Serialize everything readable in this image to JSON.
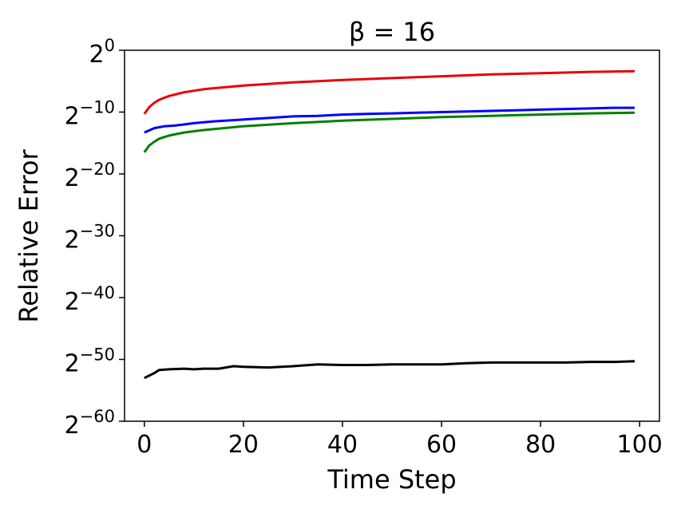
{
  "chart_data": {
    "type": "line",
    "title": "β = 16",
    "xlabel": "Time Step",
    "ylabel": "Relative Error",
    "xlim": [
      -4,
      104
    ],
    "ylim": [
      -60,
      0
    ],
    "y_scale": "log2",
    "x_ticks": [
      0,
      20,
      40,
      60,
      80,
      100
    ],
    "y_ticks": [
      {
        "value": 0,
        "base": "2",
        "exponent": "0"
      },
      {
        "value": -10,
        "base": "2",
        "exponent": "−10"
      },
      {
        "value": -20,
        "base": "2",
        "exponent": "−20"
      },
      {
        "value": -30,
        "base": "2",
        "exponent": "−30"
      },
      {
        "value": -40,
        "base": "2",
        "exponent": "−40"
      },
      {
        "value": -50,
        "base": "2",
        "exponent": "−50"
      },
      {
        "value": -60,
        "base": "2",
        "exponent": "−60"
      }
    ],
    "grid": false,
    "legend": "none",
    "series": [
      {
        "color": "#e8000b",
        "x": [
          0,
          1,
          2,
          3,
          5,
          8,
          12,
          20,
          30,
          40,
          50,
          60,
          70,
          80,
          90,
          99
        ],
        "y": [
          -10.3,
          -9.2,
          -8.5,
          -8.0,
          -7.4,
          -6.8,
          -6.3,
          -5.7,
          -5.2,
          -4.8,
          -4.5,
          -4.2,
          -3.9,
          -3.7,
          -3.5,
          -3.4
        ]
      },
      {
        "color": "#0000ff",
        "x": [
          0,
          2,
          4,
          6,
          8,
          10,
          14,
          18,
          22,
          26,
          30,
          35,
          40,
          45,
          50,
          55,
          60,
          65,
          70,
          75,
          80,
          85,
          90,
          95,
          99
        ],
        "y": [
          -13.3,
          -12.6,
          -12.3,
          -12.2,
          -12.0,
          -11.8,
          -11.5,
          -11.3,
          -11.1,
          -10.9,
          -10.7,
          -10.6,
          -10.4,
          -10.3,
          -10.2,
          -10.1,
          -10.0,
          -9.9,
          -9.8,
          -9.7,
          -9.6,
          -9.5,
          -9.4,
          -9.3,
          -9.3
        ]
      },
      {
        "color": "#008000",
        "x": [
          0,
          1,
          2,
          3,
          5,
          8,
          12,
          20,
          30,
          40,
          50,
          60,
          70,
          80,
          90,
          99
        ],
        "y": [
          -16.5,
          -15.4,
          -14.8,
          -14.3,
          -13.8,
          -13.3,
          -12.9,
          -12.3,
          -11.8,
          -11.4,
          -11.1,
          -10.8,
          -10.6,
          -10.4,
          -10.2,
          -10.1
        ]
      },
      {
        "color": "#000000",
        "x": [
          0,
          2,
          3,
          5,
          8,
          10,
          12,
          15,
          18,
          20,
          25,
          30,
          35,
          40,
          45,
          50,
          55,
          60,
          65,
          70,
          75,
          80,
          85,
          90,
          95,
          99
        ],
        "y": [
          -53.0,
          -52.2,
          -51.7,
          -51.6,
          -51.5,
          -51.6,
          -51.5,
          -51.5,
          -51.1,
          -51.2,
          -51.3,
          -51.1,
          -50.8,
          -50.9,
          -50.9,
          -50.8,
          -50.8,
          -50.8,
          -50.6,
          -50.5,
          -50.5,
          -50.5,
          -50.5,
          -50.4,
          -50.4,
          -50.3
        ]
      }
    ]
  }
}
